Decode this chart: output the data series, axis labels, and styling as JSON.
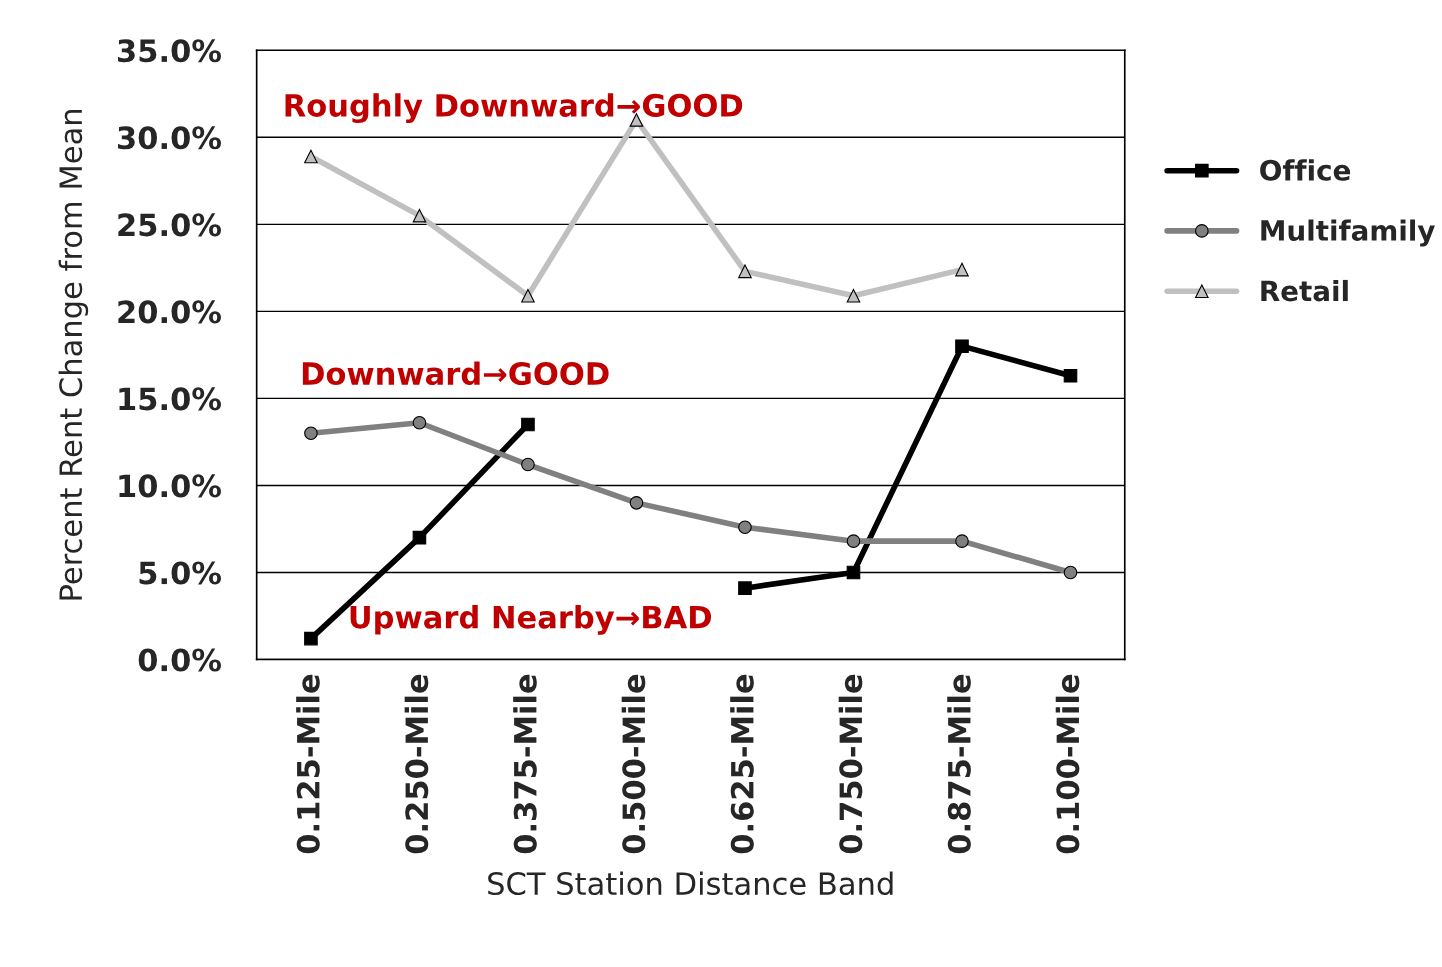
{
  "chart_data": {
    "type": "line",
    "xlabel": "SCT Station Distance Band",
    "ylabel": "Percent Rent Change from Mean",
    "categories": [
      "0.125-Mile",
      "0.250-Mile",
      "0.375-Mile",
      "0.500-Mile",
      "0.625-Mile",
      "0.750-Mile",
      "0.875-Mile",
      "0.100-Mile"
    ],
    "series": [
      {
        "name": "Office",
        "color": "#000000",
        "marker": "square",
        "values": [
          1.2,
          7.0,
          13.5,
          null,
          4.1,
          5.0,
          18.0,
          16.3
        ]
      },
      {
        "name": "Multifamily",
        "color": "#808080",
        "marker": "circle",
        "values": [
          13.0,
          13.6,
          11.2,
          9.0,
          7.6,
          6.8,
          6.8,
          5.0
        ]
      },
      {
        "name": "Retail",
        "color": "#c0c0c0",
        "marker": "triangle",
        "values": [
          28.9,
          25.5,
          20.9,
          31.0,
          22.3,
          20.9,
          22.4,
          null
        ]
      }
    ],
    "ylim": [
      0,
      35
    ],
    "yticks": [
      {
        "value": 0,
        "label": "0.0%"
      },
      {
        "value": 5,
        "label": "5.0%"
      },
      {
        "value": 10,
        "label": "10.0%"
      },
      {
        "value": 15,
        "label": "15.0%"
      },
      {
        "value": 20,
        "label": "20.0%"
      },
      {
        "value": 25,
        "label": "25.0%"
      },
      {
        "value": 30,
        "label": "30.0%"
      },
      {
        "value": 35,
        "label": "35.0%"
      }
    ],
    "grid": "y",
    "legend": "right",
    "line_style": "solid",
    "annotations": [
      "Roughly Downward→GOOD",
      "Downward→GOOD",
      "Upward Nearby→BAD"
    ]
  }
}
